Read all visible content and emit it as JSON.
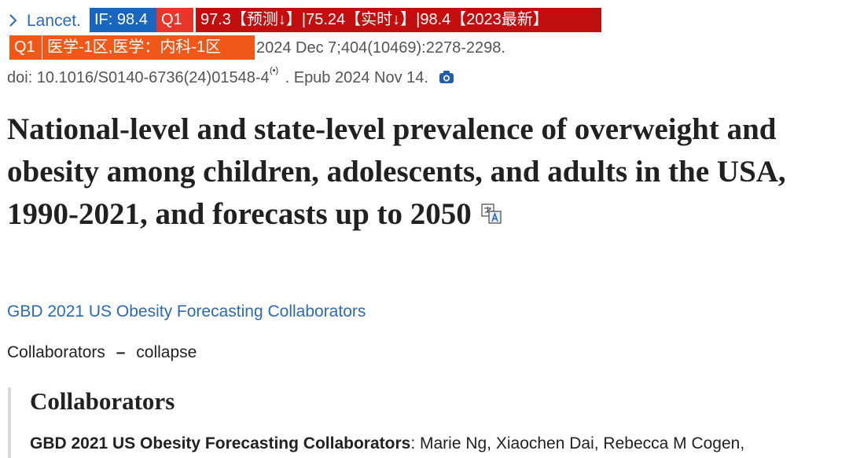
{
  "journal": {
    "name": "Lancet."
  },
  "badges": {
    "impact_factor": "IF: 98.4",
    "quartile": "Q1",
    "scores": "97.3【预测↓】|75.24【实时↓】|98.4【2023最新】",
    "cas_quartile": "Q1",
    "cas_zone": "医学-1区,医学：内科-1区"
  },
  "citation": "2024 Dec 7;404(10469):2278-2298.",
  "doi": "doi: 10.1016/S0140-6736(24)01548-4",
  "epub": ". Epub 2024 Nov 14.",
  "title": "National-level and state-level prevalence of overweight and obesity among children, adolescents, and adults in the USA, 1990-2021, and forecasts up to 2050",
  "authors": "GBD 2021 US Obesity Forecasting Collaborators",
  "collaborators_toggle": {
    "label": "Collaborators",
    "dash": "–",
    "action": "collapse"
  },
  "collaborators_section": {
    "heading": "Collaborators",
    "group": "GBD 2021 US Obesity Forecasting Collaborators",
    "members": ": Marie Ng, Xiaochen Dai, Rebecca M Cogen,"
  }
}
